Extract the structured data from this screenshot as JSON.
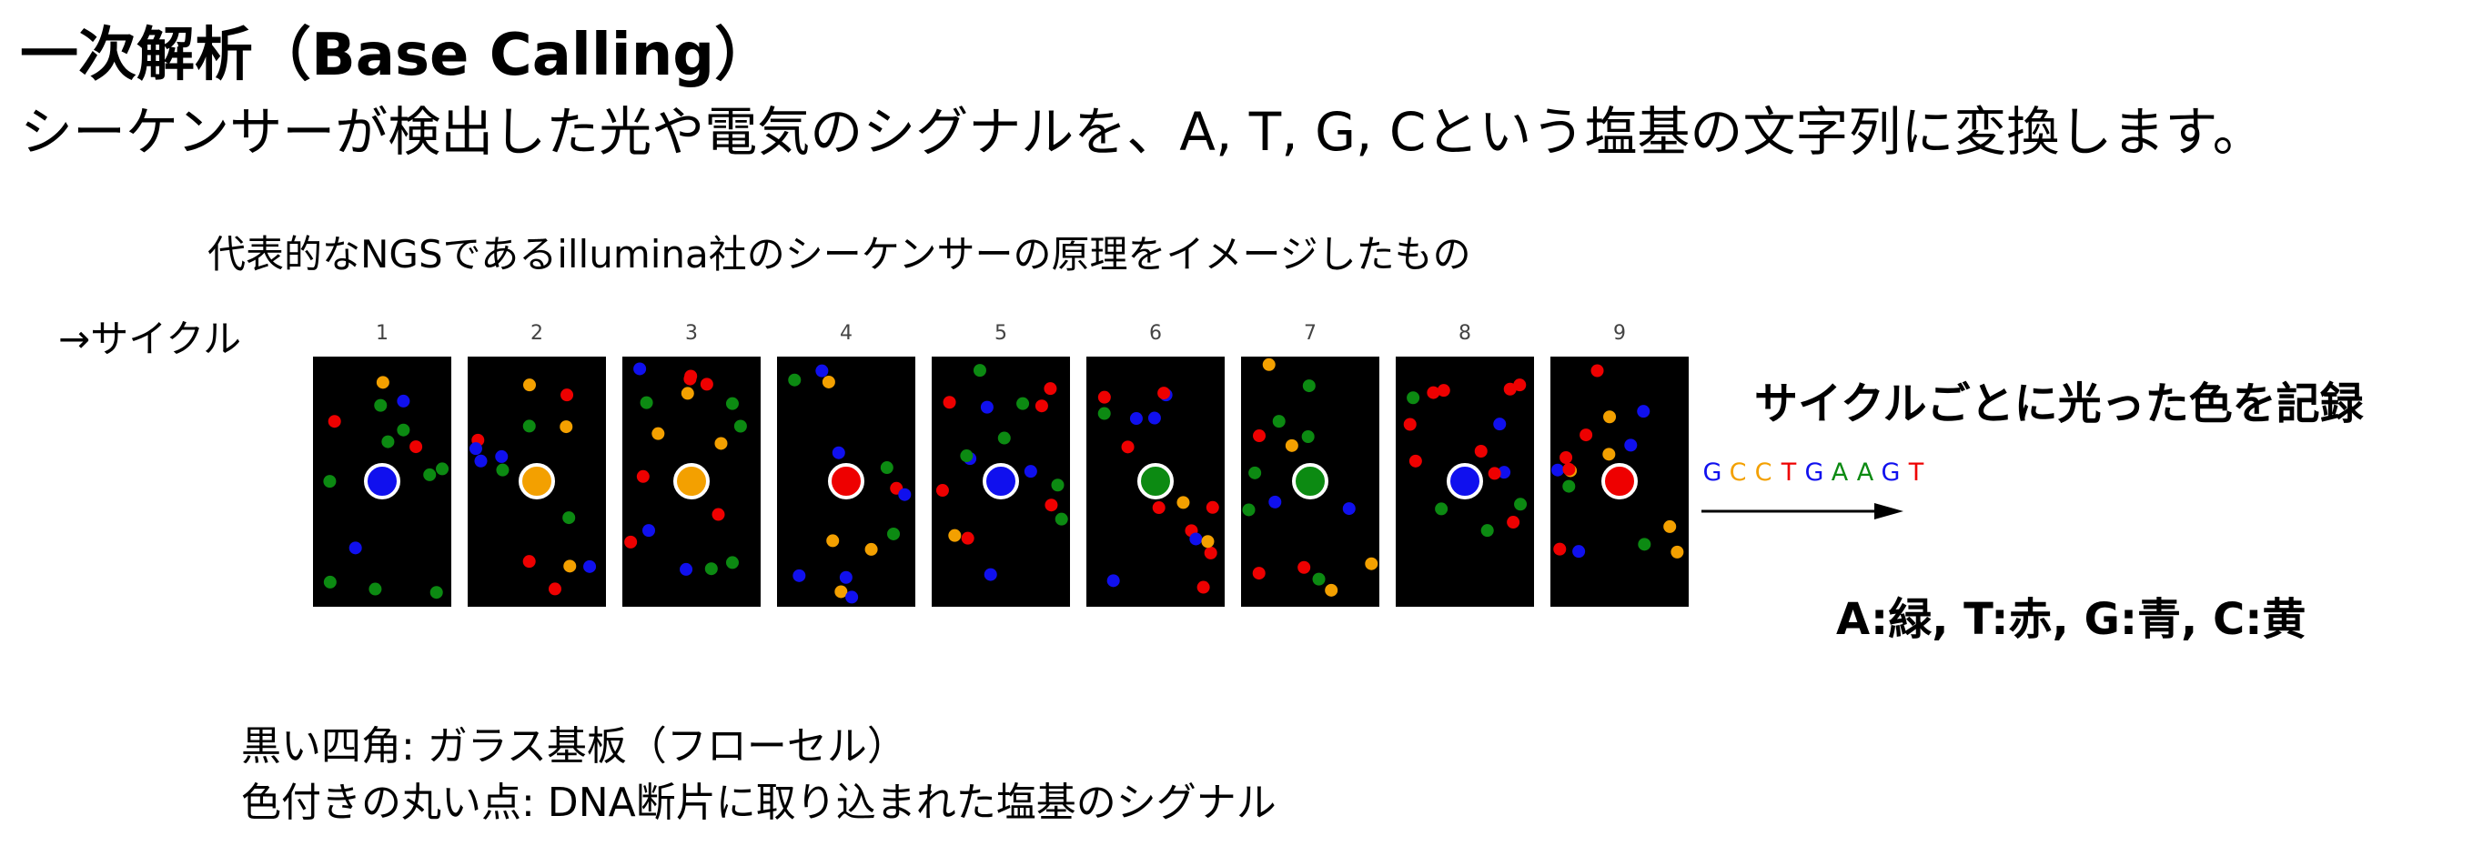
{
  "title": "一次解析（Base Calling）",
  "subtitle": "シーケンサーが検出した光や電気のシグナルを、A, T, G, Cという塩基の文字列に変換します。",
  "caption": "代表的なNGSであるillumina社のシーケンサーの原理をイメージしたもの",
  "cycle_label": "→サイクル",
  "right_heading": "サイクルごとに光った色を記録",
  "mapping": "A:緑, T:赤, G:青, C:黄",
  "legend": {
    "line1": "黒い四角: ガラス基板（フローセル）",
    "line2": "色付きの丸い点: DNA断片に取り込まれた塩基のシグナル"
  },
  "colors": {
    "green": "#0c8a12",
    "red": "#ee0000",
    "blue": "#1010ee",
    "yellow": "#f3a000",
    "panel": "#000000"
  },
  "cycles": [
    {
      "label": "1",
      "center_color": "blue"
    },
    {
      "label": "2",
      "center_color": "yellow"
    },
    {
      "label": "3",
      "center_color": "yellow"
    },
    {
      "label": "4",
      "center_color": "red"
    },
    {
      "label": "5",
      "center_color": "blue"
    },
    {
      "label": "6",
      "center_color": "green"
    },
    {
      "label": "7",
      "center_color": "green"
    },
    {
      "label": "8",
      "center_color": "blue"
    },
    {
      "label": "9",
      "center_color": "red"
    }
  ],
  "sequence": [
    {
      "letter": "G",
      "color": "blue"
    },
    {
      "letter": "C",
      "color": "yellow"
    },
    {
      "letter": "C",
      "color": "yellow"
    },
    {
      "letter": "T",
      "color": "red"
    },
    {
      "letter": "G",
      "color": "blue"
    },
    {
      "letter": "A",
      "color": "green"
    },
    {
      "letter": "A",
      "color": "green"
    },
    {
      "letter": "G",
      "color": "blue"
    },
    {
      "letter": "T",
      "color": "red"
    }
  ]
}
